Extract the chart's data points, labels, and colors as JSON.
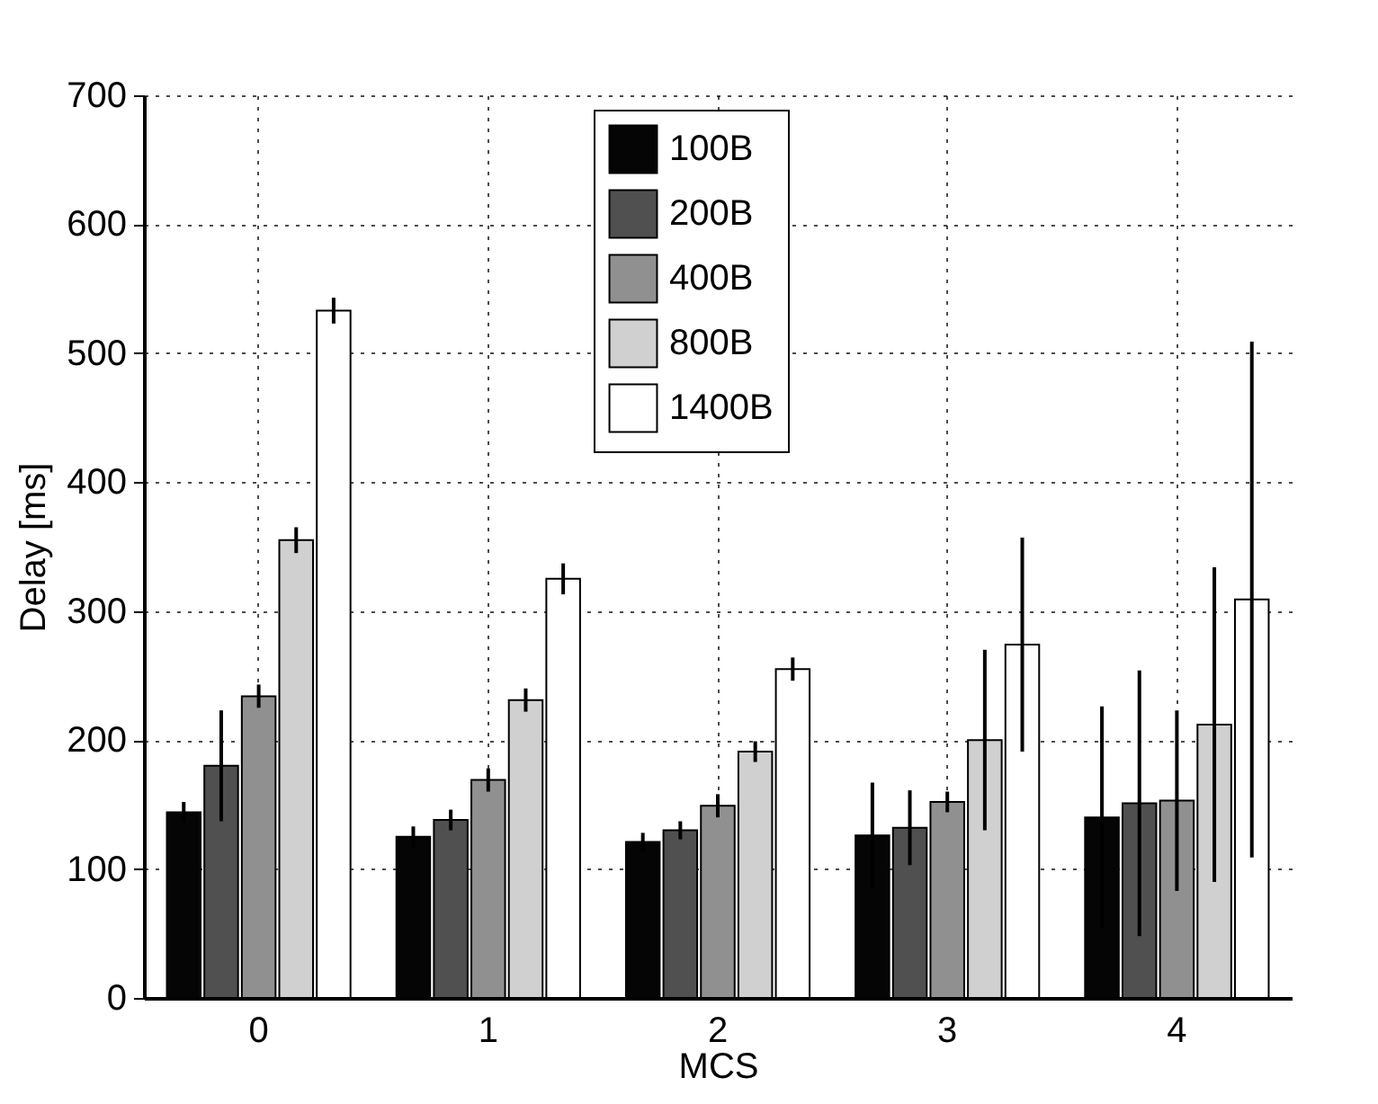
{
  "chart_data": {
    "type": "bar",
    "xlabel": "MCS",
    "ylabel": "Delay [ms]",
    "categories": [
      "0",
      "1",
      "2",
      "3",
      "4"
    ],
    "series": [
      {
        "name": "100B",
        "color": "#050505",
        "values": [
          144,
          125,
          121,
          126,
          140
        ],
        "errors": [
          8,
          8,
          7,
          41,
          86
        ]
      },
      {
        "name": "200B",
        "color": "#505050",
        "values": [
          180,
          138,
          130,
          132,
          151
        ],
        "errors": [
          43,
          8,
          7,
          29,
          103
        ]
      },
      {
        "name": "400B",
        "color": "#909090",
        "values": [
          234,
          169,
          149,
          152,
          153
        ],
        "errors": [
          9,
          9,
          9,
          8,
          70
        ]
      },
      {
        "name": "800B",
        "color": "#d0d0d0",
        "values": [
          355,
          231,
          191,
          200,
          212
        ],
        "errors": [
          10,
          9,
          8,
          70,
          122
        ]
      },
      {
        "name": "1400B",
        "color": "#ffffff",
        "values": [
          533,
          325,
          255,
          274,
          309
        ],
        "errors": [
          10,
          12,
          9,
          83,
          200
        ]
      }
    ],
    "ylim": [
      0,
      700
    ],
    "yticks": [
      0,
      100,
      200,
      300,
      400,
      500,
      600,
      700
    ],
    "grid": true,
    "legend": "top"
  }
}
